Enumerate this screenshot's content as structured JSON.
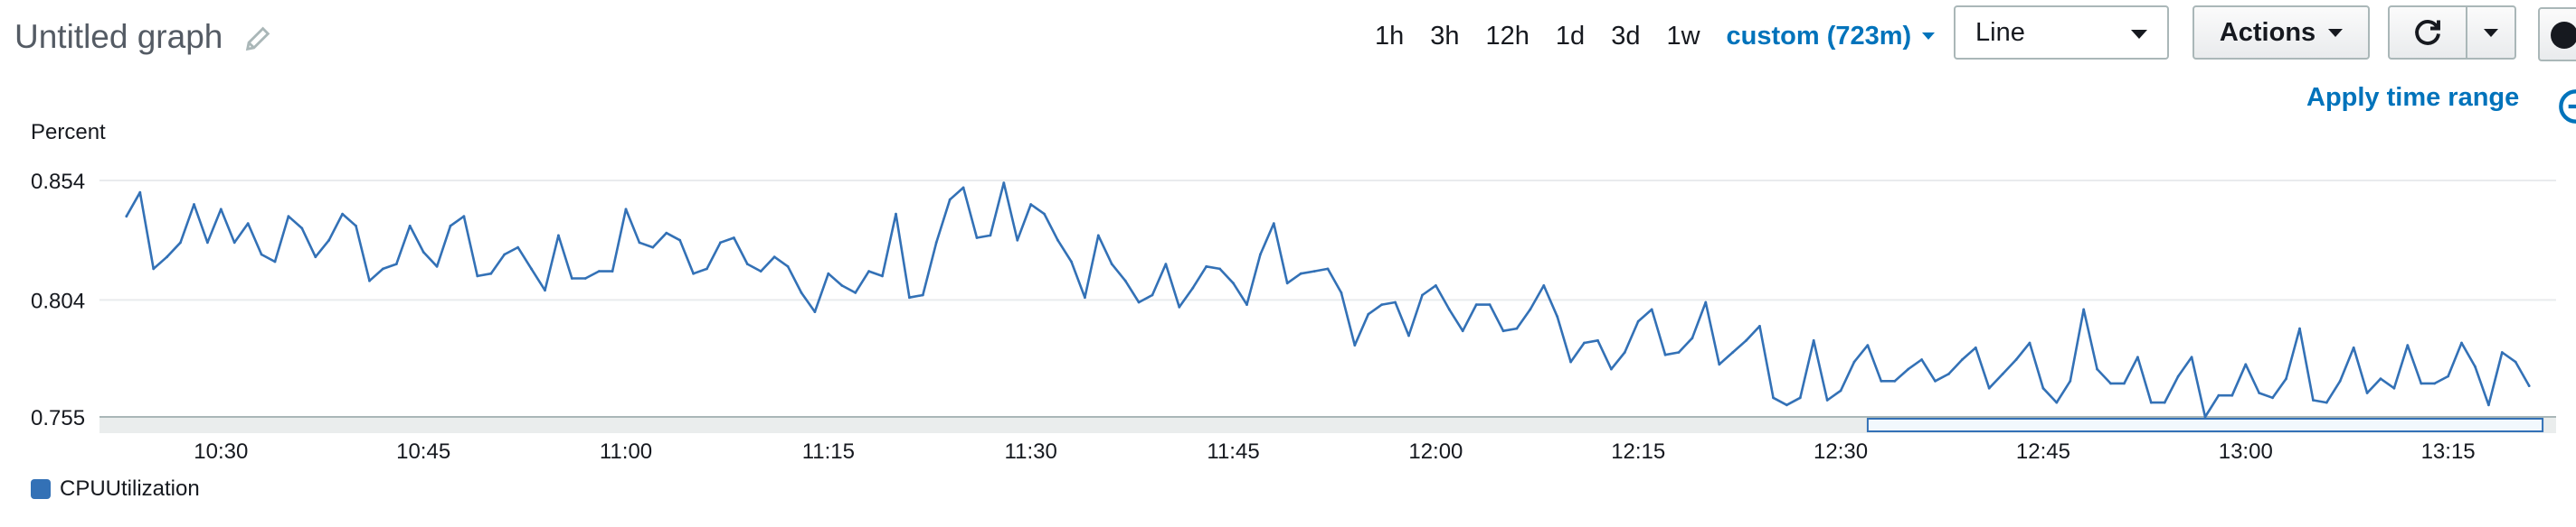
{
  "header": {
    "title": "Untitled graph",
    "time_ranges": [
      "1h",
      "3h",
      "12h",
      "1d",
      "3d",
      "1w"
    ],
    "custom_range": "custom (723m)",
    "chart_type_select": "Line",
    "actions_label": "Actions",
    "apply_time_range": "Apply time range"
  },
  "colors": {
    "accent": "#0073bb",
    "series": "#3371b6"
  },
  "chart_data": {
    "type": "line",
    "ylabel": "Percent",
    "yticks": [
      0.854,
      0.804,
      0.755
    ],
    "ylim": [
      0.755,
      0.854
    ],
    "xticks": [
      "10:30",
      "10:45",
      "11:00",
      "11:15",
      "11:30",
      "11:45",
      "12:00",
      "12:15",
      "12:30",
      "12:45",
      "13:00",
      "13:15"
    ],
    "x_range": [
      "10:21",
      "13:23"
    ],
    "interval_minutes": 1,
    "grid": true,
    "legend_position": "bottom-left",
    "series": [
      {
        "name": "CPUUtilization",
        "values": [
          0.839,
          0.849,
          0.817,
          0.822,
          0.828,
          0.844,
          0.828,
          0.842,
          0.828,
          0.836,
          0.823,
          0.82,
          0.839,
          0.834,
          0.822,
          0.829,
          0.84,
          0.835,
          0.812,
          0.817,
          0.819,
          0.835,
          0.824,
          0.818,
          0.835,
          0.839,
          0.814,
          0.815,
          0.823,
          0.826,
          0.817,
          0.808,
          0.831,
          0.813,
          0.813,
          0.816,
          0.816,
          0.842,
          0.828,
          0.826,
          0.832,
          0.829,
          0.815,
          0.817,
          0.828,
          0.83,
          0.819,
          0.816,
          0.822,
          0.818,
          0.807,
          0.799,
          0.815,
          0.81,
          0.807,
          0.816,
          0.814,
          0.84,
          0.805,
          0.806,
          0.828,
          0.846,
          0.851,
          0.83,
          0.831,
          0.853,
          0.829,
          0.844,
          0.84,
          0.829,
          0.82,
          0.805,
          0.831,
          0.819,
          0.812,
          0.803,
          0.806,
          0.819,
          0.801,
          0.809,
          0.818,
          0.817,
          0.811,
          0.802,
          0.823,
          0.836,
          0.811,
          0.815,
          0.816,
          0.817,
          0.807,
          0.785,
          0.798,
          0.802,
          0.803,
          0.789,
          0.806,
          0.81,
          0.8,
          0.791,
          0.802,
          0.802,
          0.791,
          0.792,
          0.8,
          0.81,
          0.797,
          0.778,
          0.786,
          0.787,
          0.775,
          0.782,
          0.795,
          0.8,
          0.781,
          0.782,
          0.788,
          0.803,
          0.777,
          0.782,
          0.787,
          0.793,
          0.763,
          0.76,
          0.763,
          0.787,
          0.762,
          0.766,
          0.778,
          0.785,
          0.77,
          0.77,
          0.775,
          0.779,
          0.77,
          0.773,
          0.779,
          0.784,
          0.767,
          0.773,
          0.779,
          0.786,
          0.767,
          0.761,
          0.77,
          0.8,
          0.775,
          0.769,
          0.769,
          0.78,
          0.761,
          0.761,
          0.772,
          0.78,
          0.755,
          0.764,
          0.764,
          0.777,
          0.765,
          0.763,
          0.771,
          0.792,
          0.762,
          0.761,
          0.77,
          0.784,
          0.765,
          0.771,
          0.767,
          0.785,
          0.769,
          0.769,
          0.772,
          0.786,
          0.776,
          0.76,
          0.782,
          0.778,
          0.768
        ]
      }
    ]
  }
}
